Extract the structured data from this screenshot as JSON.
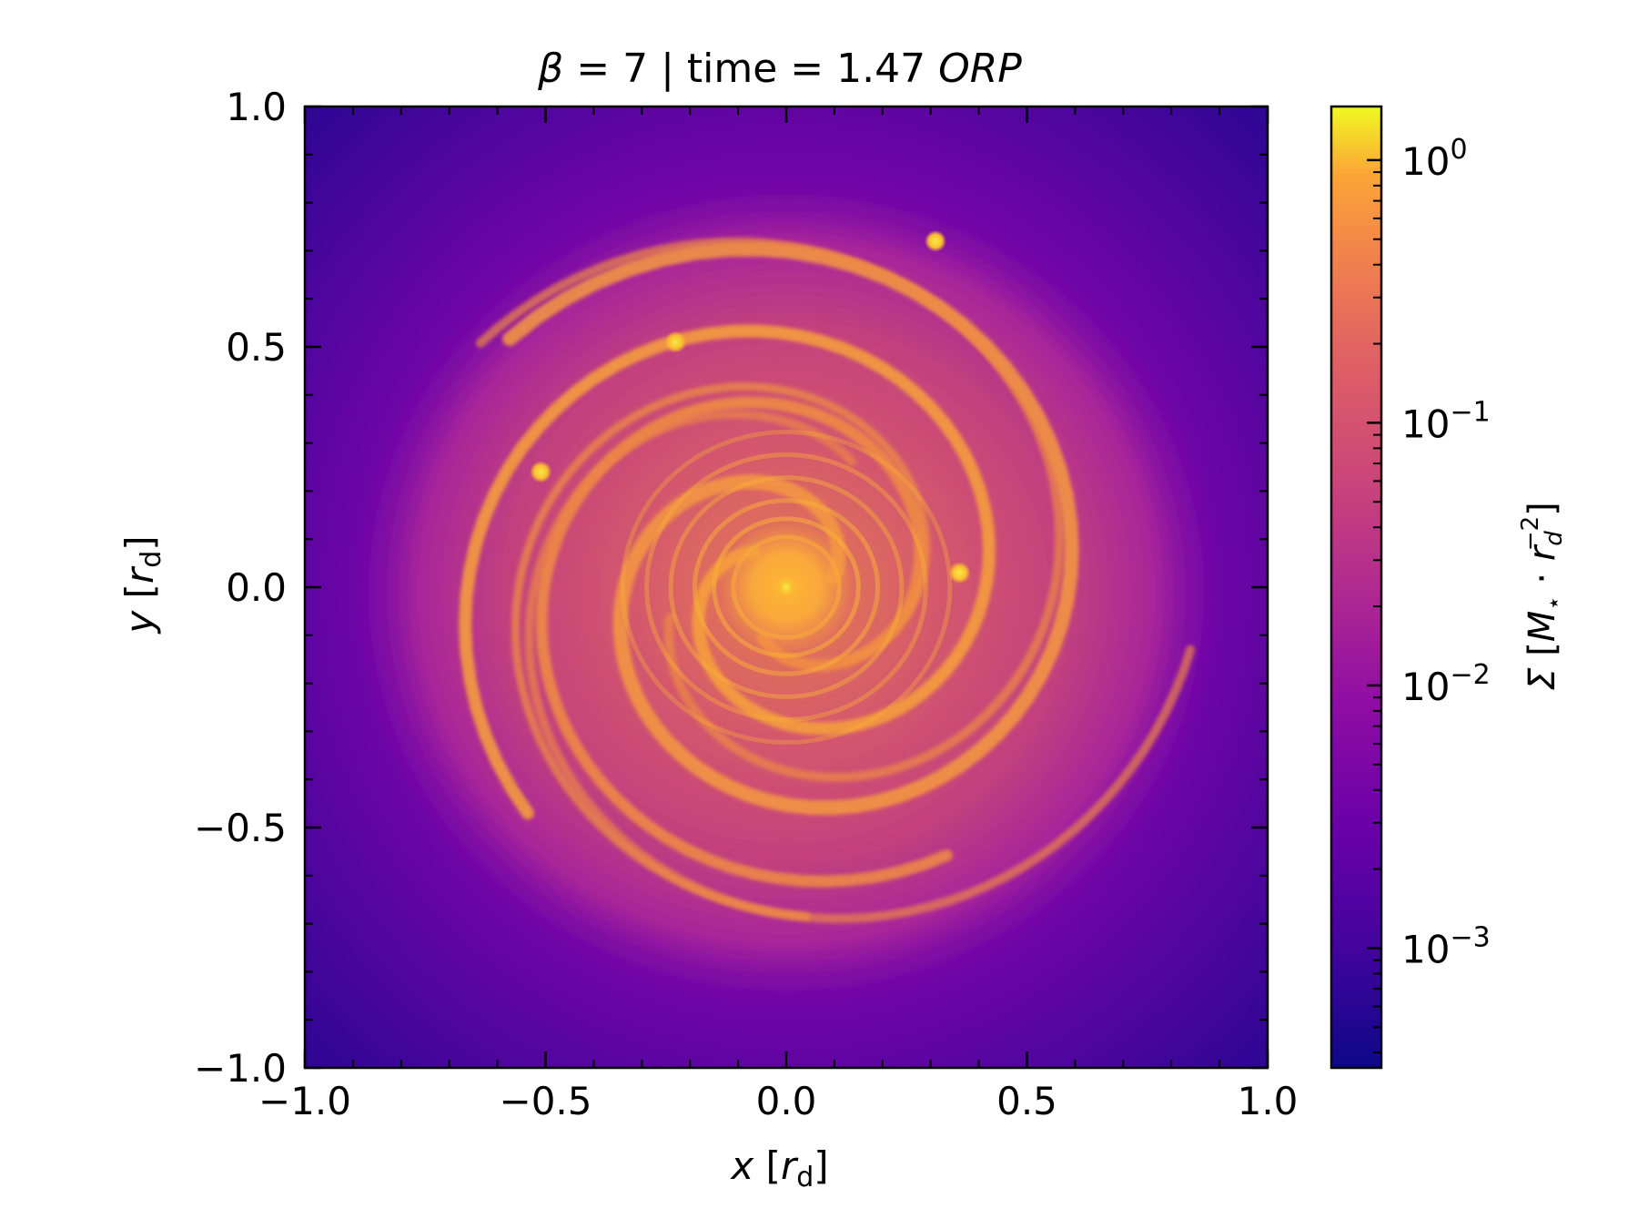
{
  "chart_data": {
    "type": "heatmap",
    "title": {
      "prefix": "β",
      "mid": " = 7 | time = 1.47 ",
      "unit": "ORP"
    },
    "xlabel": {
      "var": "x",
      "open": " [",
      "unit": "r",
      "sub": "d",
      "close": "]"
    },
    "ylabel": {
      "var": "y",
      "open": " [",
      "unit": "r",
      "sub": "d",
      "close": "]"
    },
    "xlim": [
      -1.0,
      1.0
    ],
    "ylim": [
      -1.0,
      1.0
    ],
    "x_ticks": [
      -1.0,
      -0.5,
      0.0,
      0.5,
      1.0
    ],
    "y_ticks": [
      -1.0,
      -0.5,
      0.0,
      0.5,
      1.0
    ],
    "x_tick_labels": [
      "−1.0",
      "−0.5",
      "0.0",
      "0.5",
      "1.0"
    ],
    "y_tick_labels": [
      "−1.0",
      "−0.5",
      "0.0",
      "0.5",
      "1.0"
    ],
    "colorbar": {
      "label": {
        "sym": "Σ",
        "open": " [",
        "m": "M",
        "msub": "⋆",
        "dot": " · ",
        "r": "r",
        "rsub": "d",
        "rsup": "−2",
        "close": "]"
      },
      "scale": "log",
      "range": [
        0.00035,
        1.6
      ],
      "ticks": [
        0.001,
        0.01,
        0.1,
        1
      ],
      "tick_labels": [
        {
          "base": "10",
          "exp": "−3"
        },
        {
          "base": "10",
          "exp": "−2"
        },
        {
          "base": "10",
          "exp": "−1"
        },
        {
          "base": "10",
          "exp": "0"
        }
      ],
      "colormap": "plasma"
    },
    "dense_clumps": [
      {
        "x": 0.0,
        "y": 0.0
      },
      {
        "x": -0.23,
        "y": 0.51
      },
      {
        "x": 0.31,
        "y": 0.72
      },
      {
        "x": -0.51,
        "y": 0.24
      },
      {
        "x": 0.36,
        "y": 0.03
      }
    ],
    "grid": false
  }
}
